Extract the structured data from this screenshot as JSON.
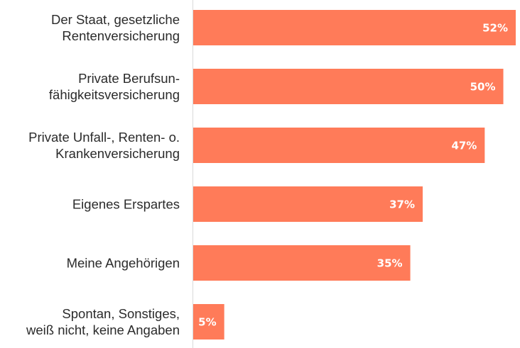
{
  "chart_data": {
    "type": "bar",
    "orientation": "horizontal",
    "categories": [
      [
        "Der Staat, gesetzliche",
        "Rentenversicherung"
      ],
      [
        "Private Berufsun-",
        "fähigkeitsversicherung"
      ],
      [
        "Private Unfall-, Renten- o.",
        "Krankenversicherung"
      ],
      [
        "Eigenes Erspartes"
      ],
      [
        "Meine Angehörigen"
      ],
      [
        "Spontan, Sonstiges,",
        "weiß nicht, keine Angaben"
      ]
    ],
    "values": [
      52,
      50,
      47,
      37,
      35,
      5
    ],
    "data_labels": [
      "52%",
      "50%",
      "47%",
      "37%",
      "35%",
      "5%"
    ],
    "unit": "%",
    "xlim": [
      0,
      52
    ],
    "grid": false,
    "legend": "none",
    "colors": {
      "bar": "#FF7B59",
      "axis": "#d9d9d9",
      "label": "#2b2b2b",
      "value_label": "#ffffff"
    }
  }
}
